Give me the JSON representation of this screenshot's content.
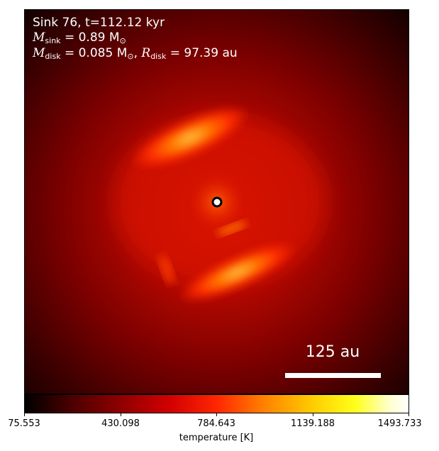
{
  "annotation": {
    "line1": "Sink 76, t=112.12 kyr",
    "sink_mass_symbol": "M",
    "sink_mass_sub": "sink",
    "sink_mass_value": "= 0.89 M",
    "solar_symbol": "⊙",
    "disk_mass_symbol": "M",
    "disk_mass_sub": "disk",
    "disk_mass_value": "= 0.085 M",
    "disk_radius_symbol": "R",
    "disk_radius_sub": "disk",
    "disk_radius_value": "= 97.39 au"
  },
  "scale_bar": {
    "label": "125 au"
  },
  "colorbar": {
    "label": "temperature [K]",
    "ticks": [
      "75.553",
      "430.098",
      "784.643",
      "1139.188",
      "1493.733"
    ]
  }
}
